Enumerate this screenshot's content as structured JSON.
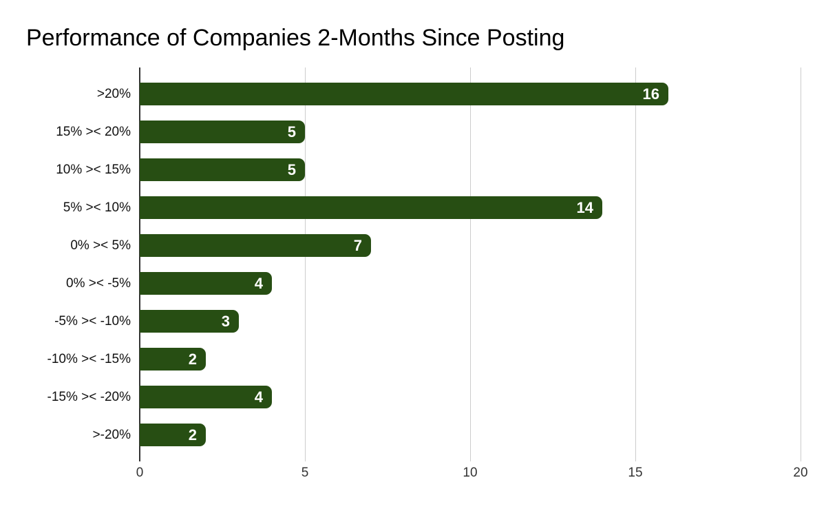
{
  "chart_data": {
    "type": "bar",
    "orientation": "horizontal",
    "title": "Performance of Companies 2-Months Since Posting",
    "categories": [
      ">20%",
      "15% >< 20%",
      "10% >< 15%",
      "5% >< 10%",
      "0% >< 5%",
      "0% >< -5%",
      "-5% >< -10%",
      "-10% >< -15%",
      "-15% >< -20%",
      ">-20%"
    ],
    "values": [
      16,
      5,
      5,
      14,
      7,
      4,
      3,
      2,
      4,
      2
    ],
    "xlabel": "",
    "ylabel": "",
    "xlim": [
      0,
      20
    ],
    "xticks": [
      0,
      5,
      10,
      15,
      20
    ],
    "grid": true,
    "legend": false,
    "data_labels_position": "inside-end",
    "colors": {
      "bar": "#274e13",
      "data_label": "#ffffff",
      "gridline": "#cccccc",
      "axis_line": "#333333",
      "tick_label": "#333333",
      "category_label": "#111111",
      "title": "#000000",
      "background": "#ffffff"
    }
  }
}
